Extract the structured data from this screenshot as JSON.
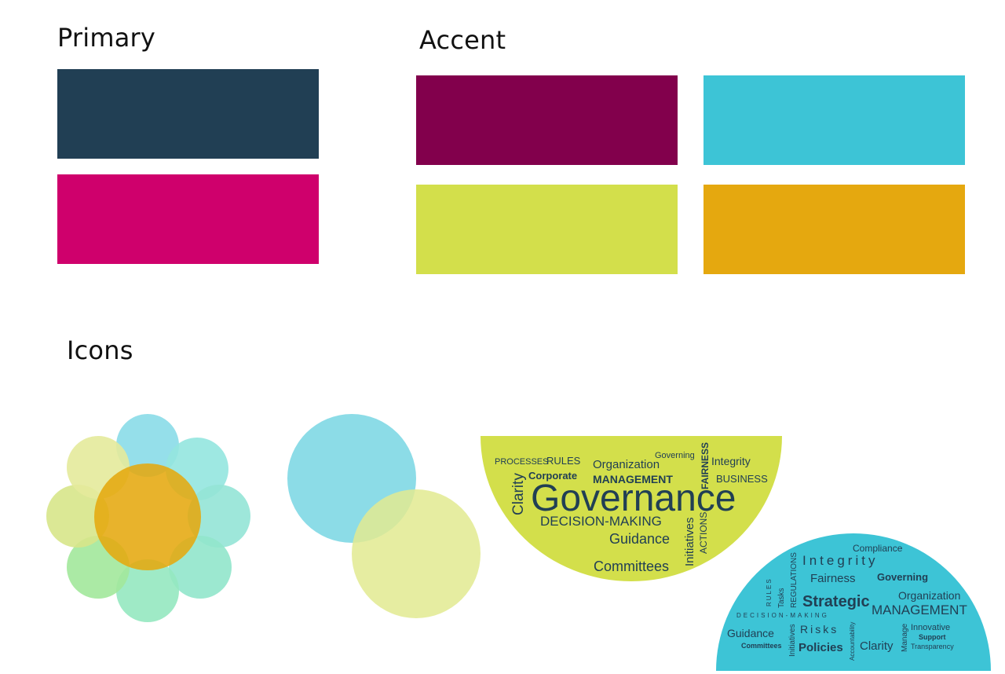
{
  "sections": {
    "primary_title": "Primary",
    "accent_title": "Accent",
    "icons_title": "Icons"
  },
  "colors": {
    "primary": [
      "#213F54",
      "#CF006C"
    ],
    "accent": [
      "#82004C",
      "#3DC4D6",
      "#D3DF4B",
      "#E5A80F"
    ]
  },
  "icons": {
    "flower": {
      "center_color": "#E5A80F",
      "petal_colors": [
        "#8ADCE8",
        "#93E6DF",
        "#93E4D6",
        "#91E5CB",
        "#95E8C0",
        "#A2E89B",
        "#D7E58A",
        "#E4EA9B"
      ]
    },
    "venn": {
      "colors": [
        "#8CDCE7",
        "#E2EA91"
      ]
    },
    "wordcloud_green": {
      "color": "#D3DF4B",
      "words": {
        "processes": "PROCESSES",
        "rules": "RULES",
        "organization": "Organization",
        "governing": "Governing",
        "integrity": "Integrity",
        "corporate": "Corporate",
        "management": "MANAGEMENT",
        "fairness": "FAIRNESS",
        "business": "BUSINESS",
        "clarity": "Clarity",
        "governance": "Governance",
        "decision_making": "DECISION-MAKING",
        "initiatives": "Initiatives",
        "actions": "ACTIONS",
        "guidance": "Guidance",
        "committees": "Committees"
      }
    },
    "wordcloud_blue": {
      "color": "#3DC4D6",
      "words": {
        "compliance": "Compliance",
        "integrity": "Integrity",
        "regulations": "REGULATIONS",
        "fairness": "Fairness",
        "governing": "Governing",
        "rules": "RULES",
        "tasks": "Tasks",
        "strategic": "Strategic",
        "organization": "Organization",
        "management": "MANAGEMENT",
        "decision_making": "DECISION-MAKING",
        "guidance": "Guidance",
        "initiatives": "Initiatives",
        "risks": "Risks",
        "accountability": "Accountability",
        "manage": "Manage",
        "innovative": "Innovative",
        "support": "Support",
        "committees": "Committees",
        "policies": "Policies",
        "clarity": "Clarity",
        "transparency": "Transparency"
      }
    }
  }
}
